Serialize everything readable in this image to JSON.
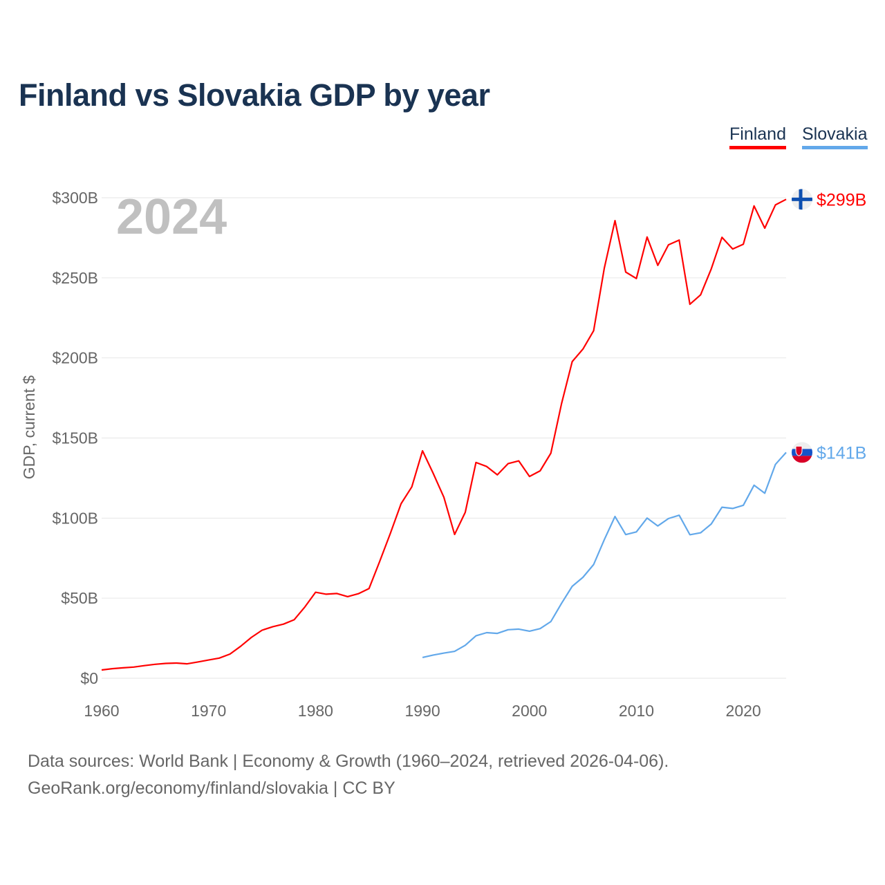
{
  "chart_data": {
    "type": "line",
    "title": "Finland vs Slovakia GDP by year",
    "ylabel": "GDP, current $",
    "xlabel": "",
    "year_label": "2024",
    "xlim": [
      1960,
      2024
    ],
    "ylim": [
      0,
      300
    ],
    "x_ticks": [
      1960,
      1970,
      1980,
      1990,
      2000,
      2010,
      2020
    ],
    "x_tick_labels": [
      "1960",
      "1970",
      "1980",
      "1990",
      "2000",
      "2010",
      "2020"
    ],
    "y_ticks": [
      0,
      50,
      100,
      150,
      200,
      250,
      300
    ],
    "y_tick_labels": [
      "$0",
      "$50B",
      "$100B",
      "$150B",
      "$200B",
      "$250B",
      "$300B"
    ],
    "grid": true,
    "legend_position": "top-right",
    "units": "billion USD",
    "series": [
      {
        "name": "Finland",
        "color": "#ff0000",
        "end_label": "$299B",
        "flag": "finland-flag",
        "start_year": 1960,
        "values": [
          5.2,
          6.0,
          6.5,
          7.0,
          7.9,
          8.7,
          9.3,
          9.5,
          9.0,
          10.2,
          11.4,
          12.6,
          15.1,
          20.0,
          25.5,
          30.0,
          32.2,
          33.8,
          36.5,
          44.5,
          53.7,
          52.5,
          52.9,
          51.0,
          52.8,
          56.0,
          73.0,
          90.6,
          109.0,
          119.5,
          142.0,
          128.0,
          113.0,
          89.8,
          103.6,
          134.7,
          132.2,
          127.0,
          134.0,
          135.7,
          126.0,
          129.5,
          140.5,
          171.5,
          197.7,
          205.5,
          217.0,
          256.0,
          285.7,
          253.6,
          249.6,
          275.5,
          257.8,
          270.6,
          273.6,
          233.5,
          239.4,
          255.6,
          275.3,
          268.0,
          271.0,
          294.9,
          281.0,
          295.5,
          299.0
        ]
      },
      {
        "name": "Slovakia",
        "color": "#62a8ea",
        "end_label": "$141B",
        "flag": "slovakia-flag",
        "start_year": 1990,
        "values": [
          13.0,
          14.5,
          15.7,
          16.8,
          20.6,
          26.5,
          28.5,
          28.0,
          30.3,
          30.7,
          29.4,
          31.0,
          35.4,
          46.8,
          57.4,
          63.0,
          71.0,
          86.5,
          101.0,
          89.7,
          91.4,
          100.0,
          95.1,
          99.7,
          101.8,
          89.6,
          90.8,
          96.3,
          106.8,
          106.0,
          108.0,
          120.5,
          115.5,
          133.5,
          141.0
        ]
      }
    ]
  },
  "footer": {
    "line1": "Data sources: World Bank | Economy & Growth (1960–2024, retrieved 2026-04-06).",
    "line2": "GeoRank.org/economy/finland/slovakia | CC BY"
  }
}
